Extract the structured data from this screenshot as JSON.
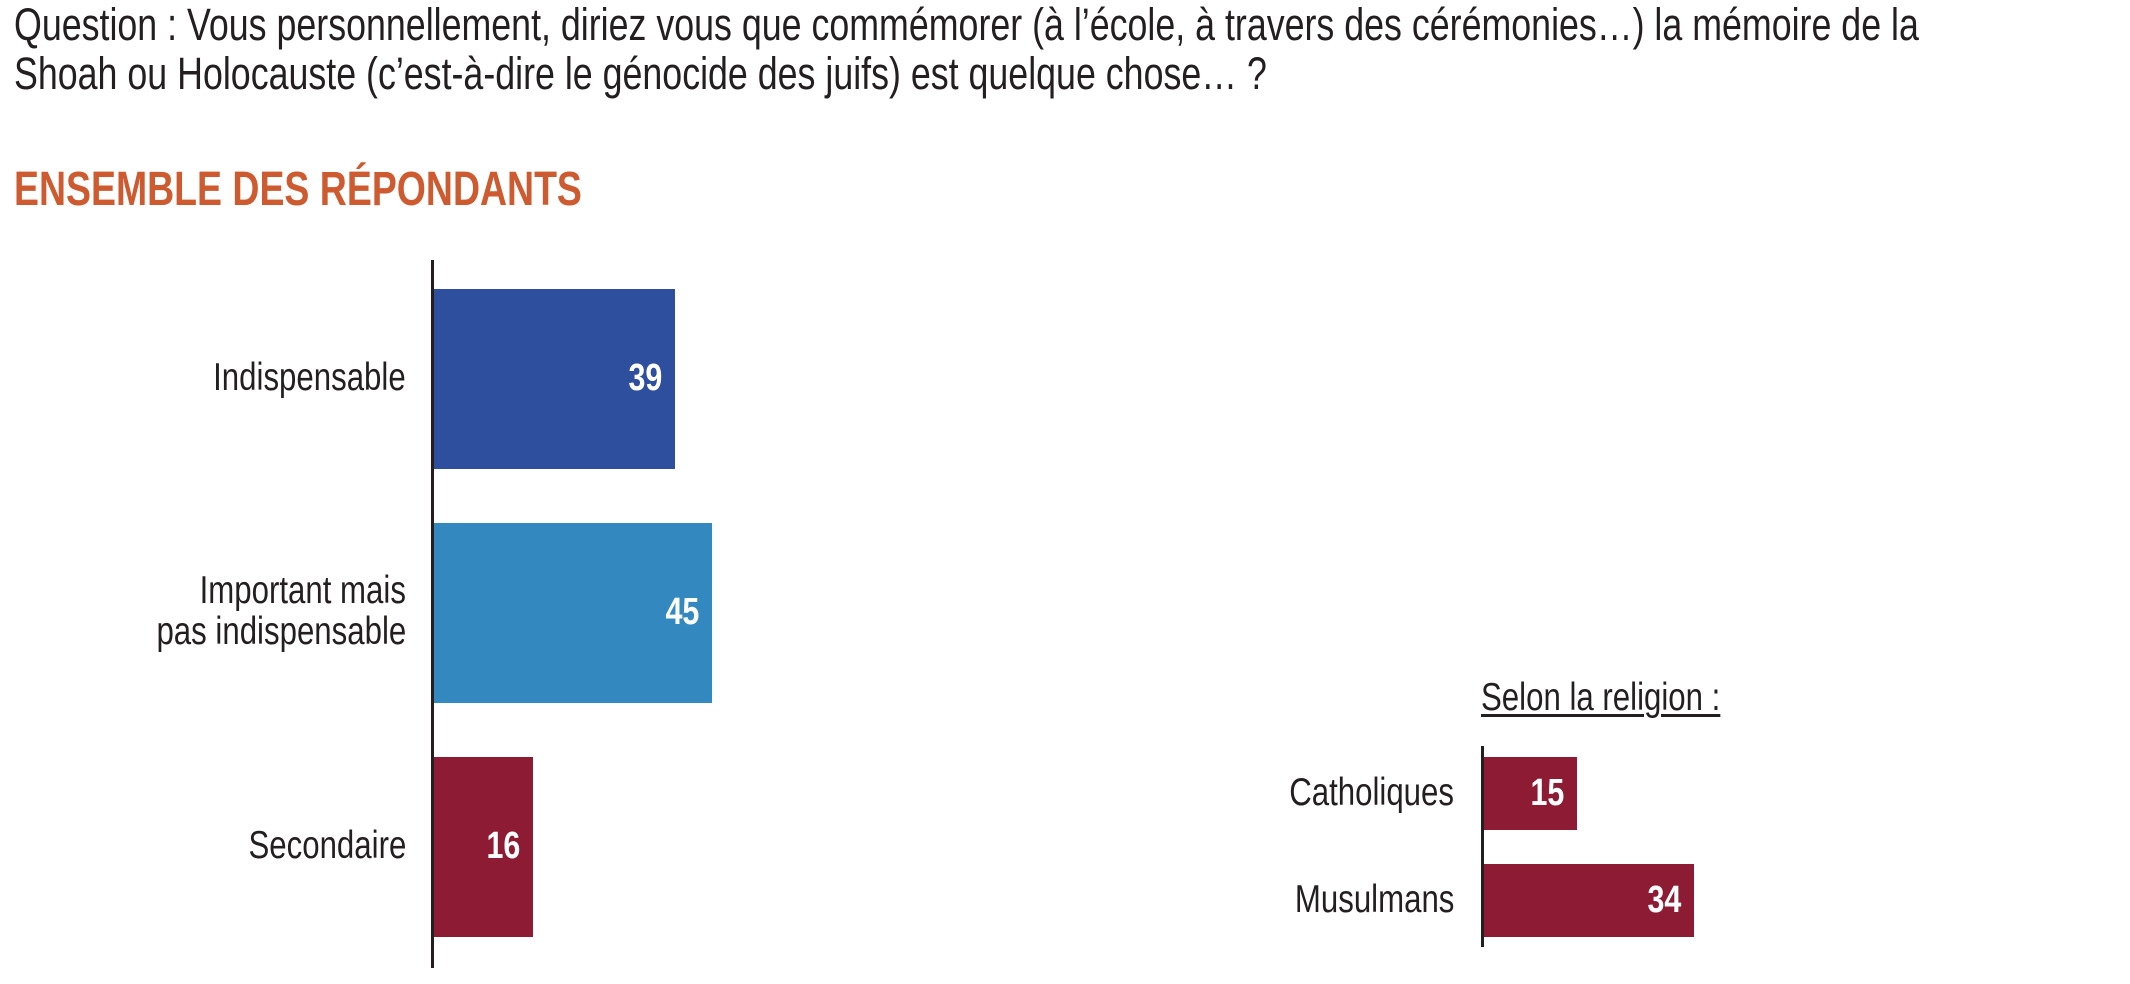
{
  "question": {
    "line1": "Question : Vous personnellement, diriez vous que commémorer (à l’école, à travers des cérémonies…) la mémoire de la",
    "line2": "Shoah ou Holocauste (c’est-à-dire le génocide des juifs) est quelque chose… ?"
  },
  "section_heading": "ENSEMBLE DES RÉPONDANTS",
  "colors": {
    "heading": "#ce5a30",
    "indispensable": "#2e4f9e",
    "important": "#3389bf",
    "secondaire": "#8e1b34",
    "axis": "#231f20",
    "text": "#231f20"
  },
  "chart_data": [
    {
      "type": "bar",
      "orientation": "horizontal",
      "title": "ENSEMBLE DES RÉPONDANTS",
      "categories": [
        "Indispensable",
        "Important mais pas indispensable",
        "Secondaire"
      ],
      "category_lines": [
        [
          "Indispensable"
        ],
        [
          "Important mais",
          "pas indispensable"
        ],
        [
          "Secondaire"
        ]
      ],
      "values": [
        39,
        45,
        16
      ],
      "value_labels": [
        "39",
        "45",
        "16"
      ],
      "bar_colors": [
        "#2e4f9e",
        "#3389bf",
        "#8e1b34"
      ],
      "xlabel": "",
      "ylabel": "",
      "xlim": [
        0,
        100
      ],
      "grid": false,
      "legend": "none"
    },
    {
      "type": "bar",
      "orientation": "horizontal",
      "title": "Selon la religion :",
      "categories": [
        "Catholiques",
        "Musulmans"
      ],
      "values": [
        15,
        34
      ],
      "value_labels": [
        "15",
        "34"
      ],
      "series_name": "Secondaire",
      "bar_colors": [
        "#8e1b34",
        "#8e1b34"
      ],
      "xlabel": "",
      "ylabel": "",
      "xlim": [
        0,
        100
      ],
      "grid": false,
      "legend": "none"
    }
  ]
}
